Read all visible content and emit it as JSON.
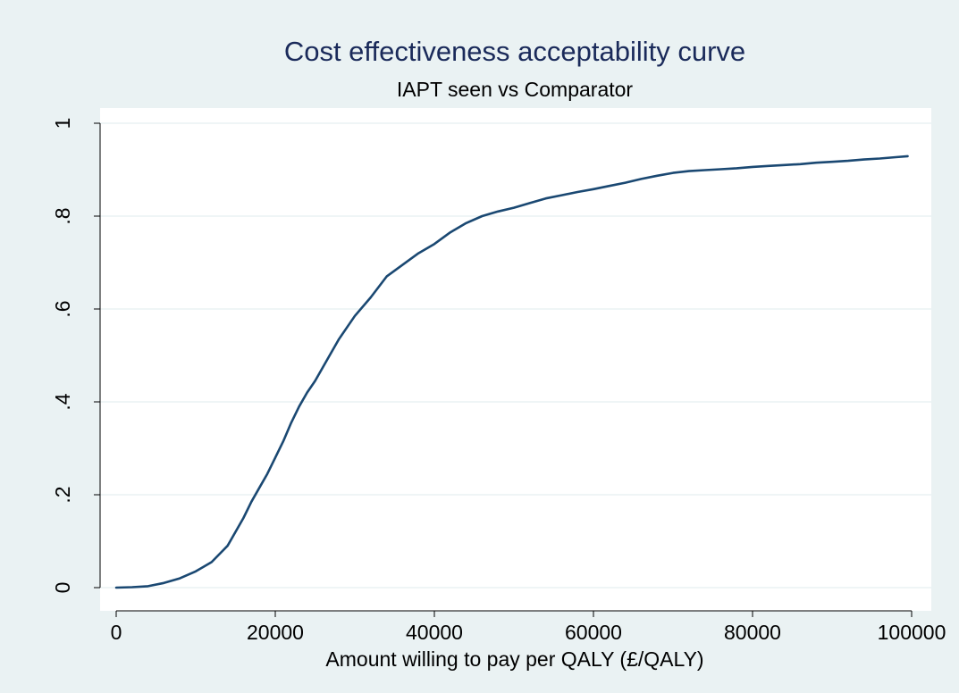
{
  "colors": {
    "outer_background": "#eaf2f3",
    "plot_background": "#ffffff",
    "grid": "#eaf2f3",
    "axis": "#000000",
    "title": "#1a2a5a",
    "line": "#1a4872"
  },
  "chart_data": {
    "type": "line",
    "title": "Cost effectiveness acceptability curve",
    "subtitle": "IAPT seen vs Comparator",
    "xlabel": "Amount willing to pay per QALY (£/QALY)",
    "ylabel": "",
    "xlim": [
      0,
      100000
    ],
    "ylim": [
      0,
      1
    ],
    "x_ticks": [
      0,
      20000,
      40000,
      60000,
      80000,
      100000
    ],
    "x_tick_labels": [
      "0",
      "20000",
      "40000",
      "60000",
      "80000",
      "100000"
    ],
    "y_ticks": [
      0,
      0.2,
      0.4,
      0.6,
      0.8,
      1
    ],
    "y_tick_labels": [
      "0",
      ".2",
      ".4",
      ".6",
      ".8",
      "1"
    ],
    "grid": true,
    "legend": "none",
    "series": [
      {
        "x": [
          0,
          2000,
          4000,
          6000,
          8000,
          10000,
          12000,
          14000,
          16000,
          17000,
          18000,
          19000,
          20000,
          21000,
          22000,
          23000,
          24000,
          25000,
          26000,
          27000,
          28000,
          29000,
          30000,
          32000,
          34000,
          36000,
          38000,
          40000,
          42000,
          44000,
          46000,
          48000,
          50000,
          52000,
          54000,
          56000,
          58000,
          60000,
          62000,
          64000,
          66000,
          68000,
          70000,
          72000,
          74000,
          76000,
          78000,
          80000,
          82000,
          84000,
          86000,
          88000,
          90000,
          92000,
          94000,
          96000,
          98000,
          99500
        ],
        "y": [
          0.0,
          0.001,
          0.003,
          0.01,
          0.02,
          0.035,
          0.055,
          0.09,
          0.15,
          0.185,
          0.215,
          0.245,
          0.28,
          0.315,
          0.355,
          0.39,
          0.42,
          0.445,
          0.475,
          0.505,
          0.535,
          0.56,
          0.585,
          0.625,
          0.67,
          0.695,
          0.72,
          0.74,
          0.765,
          0.785,
          0.8,
          0.81,
          0.818,
          0.828,
          0.838,
          0.845,
          0.852,
          0.858,
          0.865,
          0.872,
          0.88,
          0.887,
          0.893,
          0.897,
          0.899,
          0.901,
          0.903,
          0.906,
          0.908,
          0.91,
          0.912,
          0.915,
          0.917,
          0.919,
          0.922,
          0.924,
          0.927,
          0.929
        ]
      }
    ]
  }
}
